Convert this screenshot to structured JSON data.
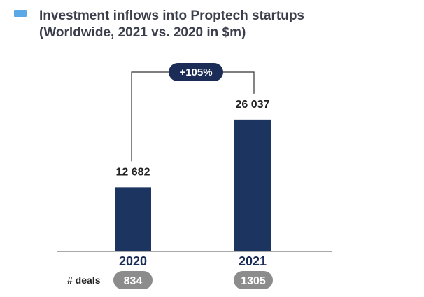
{
  "colors": {
    "bar": "#1b3560",
    "legend_square": "#5aa9e6",
    "growth_pill": "#1b2d57",
    "deal_pill": "#8c8c8c",
    "connector": "#333333",
    "baseline": "#555555"
  },
  "chart_data": {
    "type": "bar",
    "title_line1": "Investment inflows into Proptech startups",
    "title_line2": "(Worldwide, 2021 vs. 2020 in $m)",
    "categories": [
      "2020",
      "2021"
    ],
    "values": [
      12682,
      26037
    ],
    "value_labels": [
      "12 682",
      "26 037"
    ],
    "ylim": [
      0,
      31000
    ],
    "growth_label": "+105%",
    "deals_label": "# deals",
    "deals": [
      "834",
      "1305"
    ],
    "xlabel": "",
    "ylabel": ""
  }
}
